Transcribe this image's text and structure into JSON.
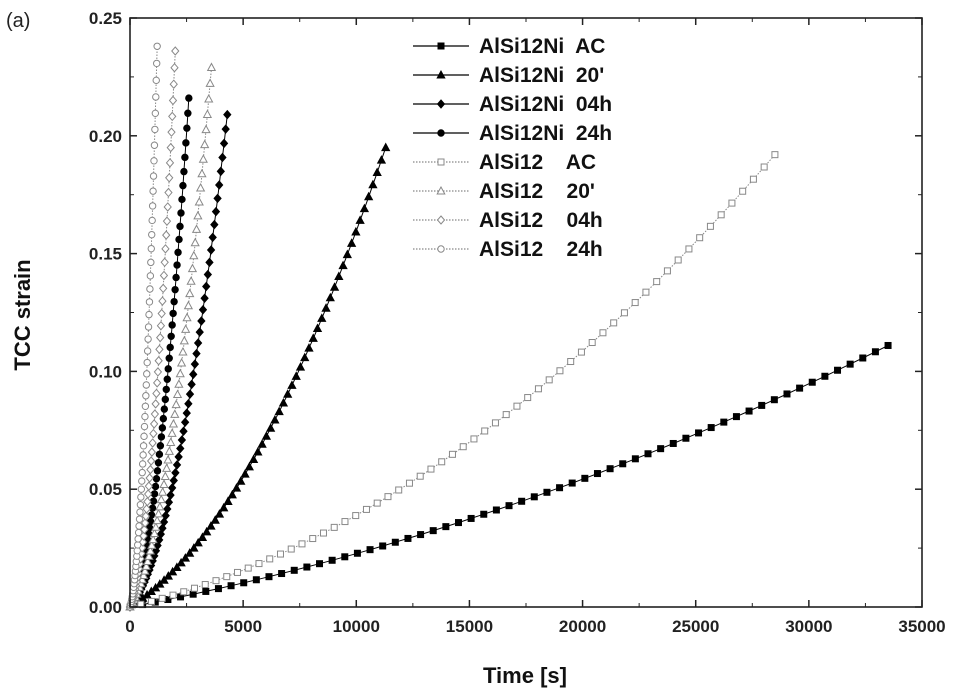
{
  "chart_data": {
    "type": "line",
    "panel_label": "(a)",
    "xlabel": "Time [s]",
    "ylabel": "TCC strain",
    "xlim": [
      0,
      35000
    ],
    "ylim": [
      0,
      0.25
    ],
    "x_ticks": [
      0,
      5000,
      10000,
      15000,
      20000,
      25000,
      30000,
      35000
    ],
    "x_tick_labels": [
      "0",
      "5000",
      "10000",
      "15000",
      "20000",
      "25000",
      "30000",
      "35000"
    ],
    "y_ticks": [
      0,
      0.05,
      0.1,
      0.15,
      0.2,
      0.25
    ],
    "y_tick_labels": [
      "0.00",
      "0.05",
      "0.10",
      "0.15",
      "0.20",
      "0.25"
    ],
    "grid": false,
    "legend_position": "top-center",
    "series": [
      {
        "name": "AlSi12Ni  AC",
        "marker": "square-filled",
        "color": "#000000",
        "line": "solid",
        "t_end": 33500,
        "strain_end": 0.111,
        "shape": 0.55
      },
      {
        "name": "AlSi12Ni  20'",
        "marker": "triangle-filled",
        "color": "#000000",
        "line": "solid",
        "t_end": 11300,
        "strain_end": 0.195,
        "shape": 0.35
      },
      {
        "name": "AlSi12Ni  04h",
        "marker": "diamond-filled",
        "color": "#000000",
        "line": "solid",
        "t_end": 4300,
        "strain_end": 0.209,
        "shape": 0.22
      },
      {
        "name": "AlSi12Ni  24h",
        "marker": "circle-filled",
        "color": "#000000",
        "line": "solid",
        "t_end": 2600,
        "strain_end": 0.216,
        "shape": 0.2
      },
      {
        "name": "AlSi12    AC",
        "marker": "square-open",
        "color": "#888888",
        "line": "dotted",
        "t_end": 28500,
        "strain_end": 0.192,
        "shape": 0.35
      },
      {
        "name": "AlSi12    20'",
        "marker": "triangle-open",
        "color": "#888888",
        "line": "dotted",
        "t_end": 3600,
        "strain_end": 0.229,
        "shape": 0.22
      },
      {
        "name": "AlSi12    04h",
        "marker": "diamond-open",
        "color": "#888888",
        "line": "dotted",
        "t_end": 2000,
        "strain_end": 0.236,
        "shape": 0.18
      },
      {
        "name": "AlSi12    24h",
        "marker": "circle-open",
        "color": "#888888",
        "line": "dotted",
        "t_end": 1200,
        "strain_end": 0.238,
        "shape": 0.15
      }
    ]
  }
}
